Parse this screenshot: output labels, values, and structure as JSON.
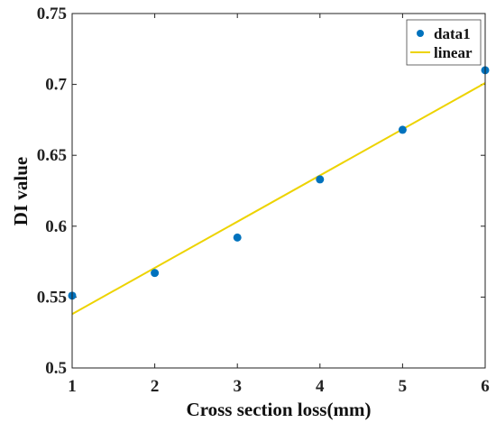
{
  "chart_data": {
    "type": "scatter",
    "xlabel": "Cross section loss(mm)",
    "ylabel": "DI value",
    "xlim": [
      1,
      6
    ],
    "ylim": [
      0.5,
      0.75
    ],
    "xticks": [
      "1",
      "2",
      "3",
      "4",
      "5",
      "6"
    ],
    "yticks": [
      "0.5",
      "0.55",
      "0.6",
      "0.65",
      "0.7",
      "0.75"
    ],
    "grid": false,
    "legend_position": "top-right",
    "series": [
      {
        "name": "data1",
        "kind": "scatter",
        "color": "#0072bd",
        "x": [
          1,
          2,
          3,
          4,
          5,
          6
        ],
        "y": [
          0.551,
          0.567,
          0.592,
          0.633,
          0.668,
          0.71
        ]
      },
      {
        "name": "linear",
        "kind": "line",
        "color": "#edd300",
        "x": [
          1,
          6
        ],
        "y": [
          0.538,
          0.701
        ]
      }
    ]
  }
}
